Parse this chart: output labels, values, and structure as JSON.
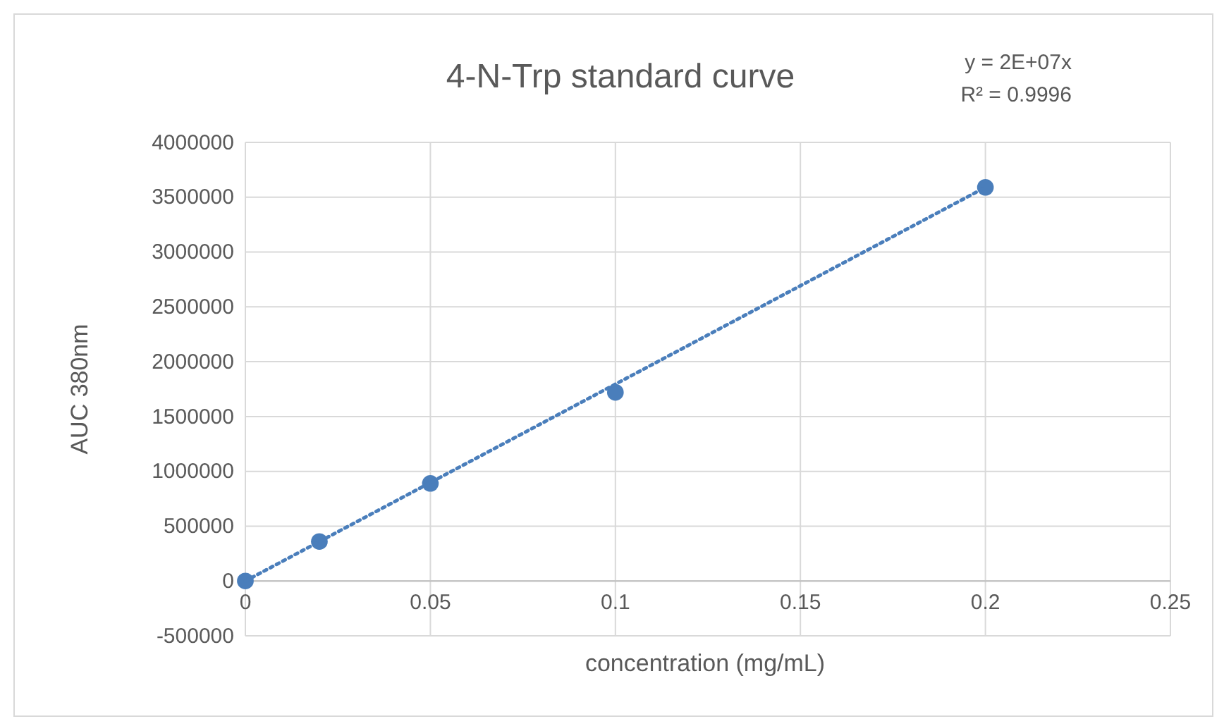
{
  "chart_data": {
    "type": "scatter",
    "title": "4-N-Trp standard curve",
    "xlabel": "concentration (mg/mL)",
    "ylabel": "AUC 380nm",
    "annotations": [
      "y = 2E+07x",
      "R² = 0.9996"
    ],
    "series": [
      {
        "color": "#4a7ebb",
        "marker": "circle",
        "x": [
          0,
          0.02,
          0.05,
          0.1,
          0.2
        ],
        "values": [
          0,
          360000,
          890000,
          1720000,
          3590000
        ]
      },
      {
        "type": "line",
        "color": "#4a7ebb",
        "marker": "none",
        "line_style": "dotted",
        "x": [
          0,
          0.2
        ],
        "values": [
          0,
          3590000
        ]
      }
    ],
    "xlim": [
      0,
      0.25
    ],
    "xticks": [
      0,
      0.05,
      0.1,
      0.15,
      0.2,
      0.25
    ],
    "ylim": [
      -500000,
      4000000
    ],
    "yticks": [
      -500000,
      0,
      500000,
      1000000,
      1500000,
      2000000,
      2500000,
      3000000,
      3500000,
      4000000
    ],
    "grid": true
  }
}
